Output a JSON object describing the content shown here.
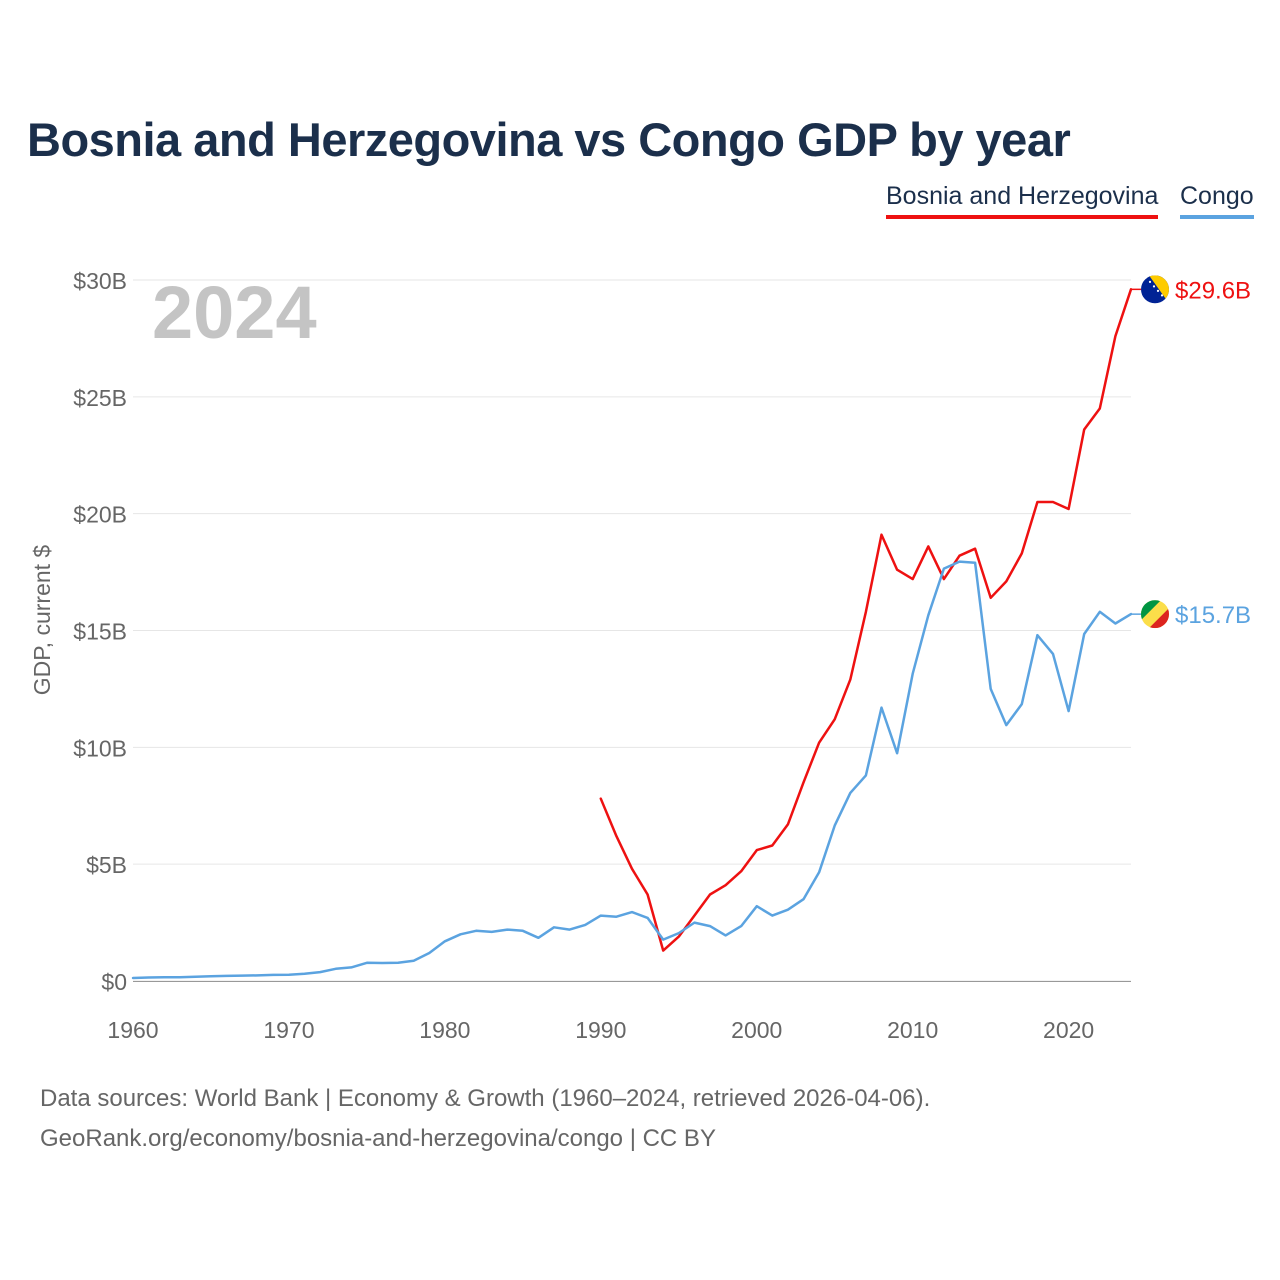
{
  "chart_data": {
    "type": "line",
    "title": "Bosnia and Herzegovina vs Congo GDP by year",
    "ylabel": "GDP, current $",
    "xlabel": "",
    "year_label": "2024",
    "xlim": [
      1960,
      2024
    ],
    "ylim": [
      0,
      30
    ],
    "x_ticks": [
      1960,
      1970,
      1980,
      1990,
      2000,
      2010,
      2020
    ],
    "x_tick_labels": [
      "1960",
      "1970",
      "1980",
      "1990",
      "2000",
      "2010",
      "2020"
    ],
    "y_ticks": [
      0,
      5,
      10,
      15,
      20,
      25,
      30
    ],
    "y_tick_labels": [
      "$0",
      "$5B",
      "$10B",
      "$15B",
      "$20B",
      "$25B",
      "$30B"
    ],
    "grid": true,
    "legend_position": "top-right",
    "series": [
      {
        "name": "Bosnia and Herzegovina",
        "color": "#ee1111",
        "end_label": "$29.6B",
        "flag_icon": "bosnia-flag-icon",
        "x": [
          1990,
          1991,
          1992,
          1993,
          1994,
          1995,
          1996,
          1997,
          1998,
          1999,
          2000,
          2001,
          2002,
          2003,
          2004,
          2005,
          2006,
          2007,
          2008,
          2009,
          2010,
          2011,
          2012,
          2013,
          2014,
          2015,
          2016,
          2017,
          2018,
          2019,
          2020,
          2021,
          2022,
          2023,
          2024
        ],
        "values": [
          7.8,
          6.2,
          4.8,
          3.7,
          1.3,
          1.9,
          2.8,
          3.7,
          4.1,
          4.7,
          5.6,
          5.8,
          6.7,
          8.5,
          10.2,
          11.2,
          12.9,
          15.8,
          19.1,
          17.6,
          17.2,
          18.6,
          17.2,
          18.2,
          18.5,
          16.4,
          17.1,
          18.3,
          20.5,
          20.5,
          20.2,
          23.6,
          24.5,
          27.6,
          29.6
        ]
      },
      {
        "name": "Congo",
        "color": "#5ba3e0",
        "end_label": "$15.7B",
        "flag_icon": "congo-flag-icon",
        "x": [
          1960,
          1961,
          1962,
          1963,
          1964,
          1965,
          1966,
          1967,
          1968,
          1969,
          1970,
          1971,
          1972,
          1973,
          1974,
          1975,
          1976,
          1977,
          1978,
          1979,
          1980,
          1981,
          1982,
          1983,
          1984,
          1985,
          1986,
          1987,
          1988,
          1989,
          1990,
          1991,
          1992,
          1993,
          1994,
          1995,
          1996,
          1997,
          1998,
          1999,
          2000,
          2001,
          2002,
          2003,
          2004,
          2005,
          2006,
          2007,
          2008,
          2009,
          2010,
          2011,
          2012,
          2013,
          2014,
          2015,
          2016,
          2017,
          2018,
          2019,
          2020,
          2021,
          2022,
          2023,
          2024
        ],
        "values": [
          0.13,
          0.15,
          0.16,
          0.16,
          0.18,
          0.2,
          0.22,
          0.23,
          0.24,
          0.26,
          0.27,
          0.31,
          0.38,
          0.52,
          0.58,
          0.78,
          0.77,
          0.78,
          0.87,
          1.2,
          1.7,
          2.0,
          2.15,
          2.1,
          2.2,
          2.15,
          1.85,
          2.3,
          2.2,
          2.4,
          2.8,
          2.75,
          2.95,
          2.7,
          1.77,
          2.05,
          2.5,
          2.35,
          1.95,
          2.35,
          3.2,
          2.8,
          3.05,
          3.5,
          4.65,
          6.65,
          8.05,
          8.8,
          11.7,
          9.75,
          13.15,
          15.65,
          17.65,
          17.95,
          17.9,
          12.5,
          10.95,
          11.85,
          14.8,
          14.0,
          11.55,
          14.85,
          15.8,
          15.3,
          15.7
        ]
      }
    ]
  },
  "footer": {
    "source_line1": "Data sources: World Bank | Economy & Growth (1960–2024, retrieved 2026-04-06).",
    "source_line2": "GeoRank.org/economy/bosnia-and-herzegovina/congo | CC BY"
  }
}
